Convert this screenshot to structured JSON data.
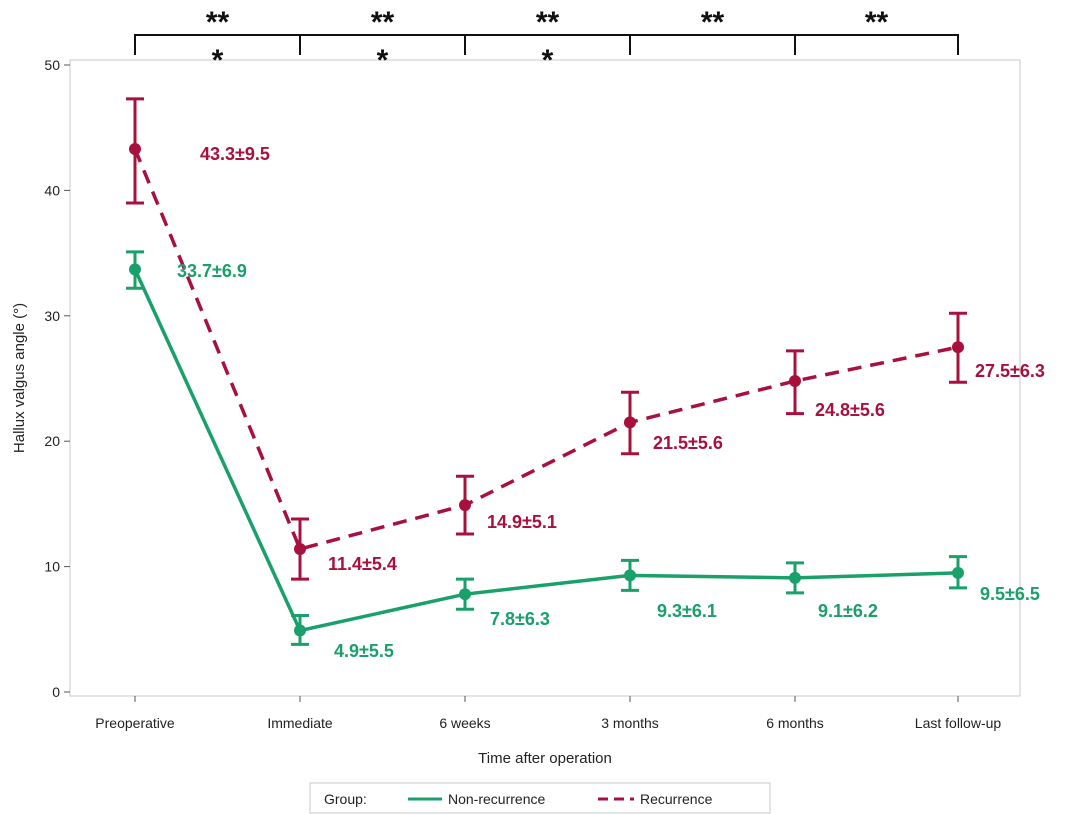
{
  "chart_data": {
    "type": "line",
    "title": "",
    "xlabel": "Time after operation",
    "ylabel": "Hallux valgus angle (°)",
    "categories": [
      "Preoperative",
      "Immediate",
      "6 weeks",
      "3 months",
      "6 months",
      "Last follow-up"
    ],
    "ylim": [
      0,
      50
    ],
    "yticks": [
      0,
      10,
      20,
      30,
      40,
      50
    ],
    "grid": false,
    "series": [
      {
        "name": "Non-recurrence",
        "color": "#1aa06a",
        "line_style": "solid",
        "values": [
          33.7,
          4.9,
          7.8,
          9.3,
          9.1,
          9.5
        ],
        "error_low": [
          32.2,
          3.8,
          6.6,
          8.1,
          7.9,
          8.3
        ],
        "error_high": [
          35.1,
          6.1,
          9.0,
          10.5,
          10.3,
          10.8
        ],
        "labels": [
          "33.7±6.9",
          "4.9±5.5",
          "7.8±6.3",
          "9.3±6.1",
          "9.1±6.2",
          "9.5±6.5"
        ]
      },
      {
        "name": "Recurrence",
        "color": "#a8103e",
        "line_style": "dashed",
        "values": [
          43.3,
          11.4,
          14.9,
          21.5,
          24.8,
          27.5
        ],
        "error_low": [
          39.0,
          9.0,
          12.6,
          19.0,
          22.2,
          24.7
        ],
        "error_high": [
          47.3,
          13.8,
          17.2,
          23.9,
          27.2,
          30.2
        ],
        "labels": [
          "43.3±9.5",
          "11.4±5.4",
          "14.9±5.1",
          "21.5±5.6",
          "24.8±5.6",
          "27.5±6.3"
        ]
      }
    ],
    "significance": [
      {
        "from": 0,
        "to": 1,
        "top": "**",
        "bottom": "*"
      },
      {
        "from": 1,
        "to": 2,
        "top": "**",
        "bottom": "*"
      },
      {
        "from": 2,
        "to": 3,
        "top": "**",
        "bottom": "*"
      },
      {
        "from": 3,
        "to": 4,
        "top": "**",
        "bottom": ""
      },
      {
        "from": 4,
        "to": 5,
        "top": "**",
        "bottom": ""
      }
    ],
    "legend": {
      "title": "Group:",
      "placement": "bottom",
      "entries": [
        "Non-recurrence",
        "Recurrence"
      ]
    }
  }
}
